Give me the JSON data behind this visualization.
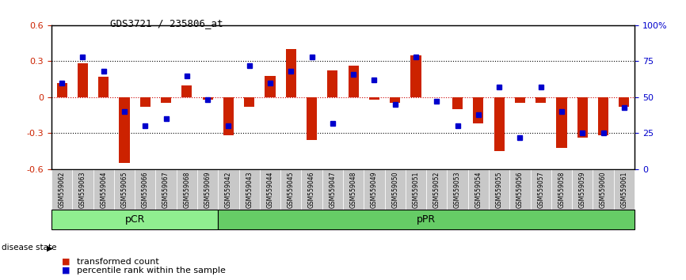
{
  "title": "GDS3721 / 235806_at",
  "samples": [
    "GSM559062",
    "GSM559063",
    "GSM559064",
    "GSM559065",
    "GSM559066",
    "GSM559067",
    "GSM559068",
    "GSM559069",
    "GSM559042",
    "GSM559043",
    "GSM559044",
    "GSM559045",
    "GSM559046",
    "GSM559047",
    "GSM559048",
    "GSM559049",
    "GSM559050",
    "GSM559051",
    "GSM559052",
    "GSM559053",
    "GSM559054",
    "GSM559055",
    "GSM559056",
    "GSM559057",
    "GSM559058",
    "GSM559059",
    "GSM559060",
    "GSM559061"
  ],
  "transformed_count": [
    0.12,
    0.28,
    0.17,
    -0.55,
    -0.08,
    -0.05,
    0.1,
    -0.02,
    -0.32,
    -0.08,
    0.18,
    0.4,
    -0.36,
    0.22,
    0.26,
    -0.02,
    -0.05,
    0.35,
    0.0,
    -0.1,
    -0.22,
    -0.45,
    -0.05,
    -0.05,
    -0.42,
    -0.34,
    -0.32,
    -0.08
  ],
  "percentile_rank": [
    60,
    78,
    68,
    40,
    30,
    35,
    65,
    48,
    30,
    72,
    60,
    68,
    78,
    32,
    66,
    62,
    45,
    78,
    47,
    30,
    38,
    57,
    22,
    57,
    40,
    25,
    25,
    43
  ],
  "groups": [
    {
      "name": "pCR",
      "start": 0,
      "end": 8,
      "color": "#90EE90"
    },
    {
      "name": "pPR",
      "start": 8,
      "end": 28,
      "color": "#66CC66"
    }
  ],
  "ylim": [
    -0.6,
    0.6
  ],
  "yticks_left": [
    -0.6,
    -0.3,
    0.0,
    0.3,
    0.6
  ],
  "yticks_right": [
    0,
    25,
    50,
    75,
    100
  ],
  "bar_color": "#CC2200",
  "dot_color": "#0000CC",
  "zero_line_color": "#CC0000",
  "label_box_color": "#C8C8C8",
  "legend_items": [
    "transformed count",
    "percentile rank within the sample"
  ]
}
